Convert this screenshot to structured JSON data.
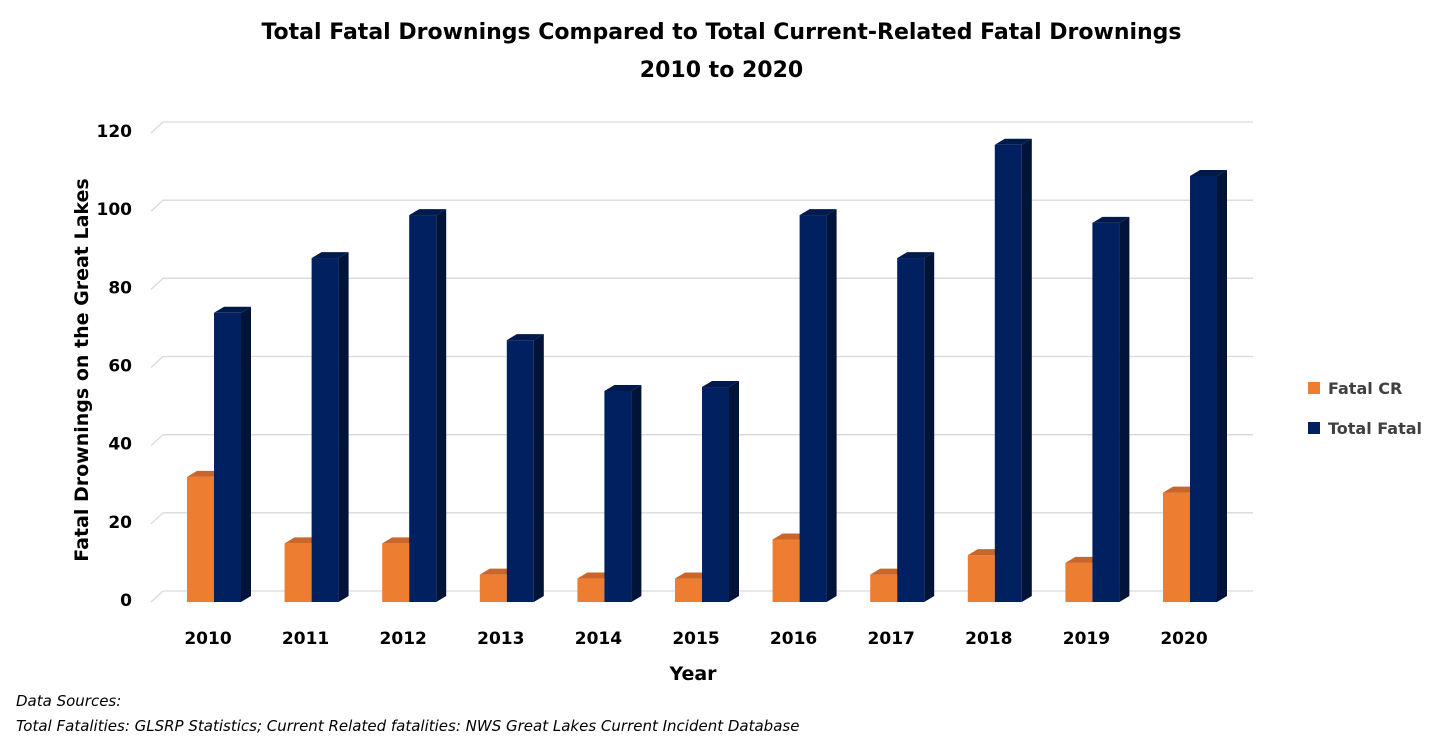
{
  "colors": {
    "fatal_cr": "#ED7D31",
    "fatal_cr_dark": "#B85A1B",
    "fatal_cr_top": "#C9662A",
    "total_fatal": "#002060",
    "total_fatal_dark": "#001338",
    "total_fatal_top": "#001A4D",
    "grid": "#D9D9D9"
  },
  "chart_data": {
    "type": "bar",
    "title": "Total Fatal Drownings Compared to Total Current-Related Fatal Drownings",
    "subtitle": "2010 to 2020",
    "xlabel": "Year",
    "ylabel": "Fatal Drownings on the Great Lakes",
    "ylim": [
      0,
      120
    ],
    "yticks": [
      "0",
      "20",
      "40",
      "60",
      "80",
      "100",
      "120"
    ],
    "grid": true,
    "legend_position": "right",
    "categories": [
      "2010",
      "2011",
      "2012",
      "2013",
      "2014",
      "2015",
      "2016",
      "2017",
      "2018",
      "2019",
      "2020"
    ],
    "series": [
      {
        "name": "Fatal CR",
        "values": [
          32,
          15,
          15,
          7,
          6,
          6,
          16,
          7,
          12,
          10,
          28
        ]
      },
      {
        "name": "Total Fatal",
        "values": [
          74,
          88,
          99,
          67,
          54,
          55,
          99,
          88,
          117,
          97,
          109
        ]
      }
    ]
  },
  "sources": {
    "line1": "Data Sources:",
    "line2": "Total Fatalities: GLSRP Statistics; Current Related fatalities: NWS Great Lakes Current Incident Database"
  }
}
